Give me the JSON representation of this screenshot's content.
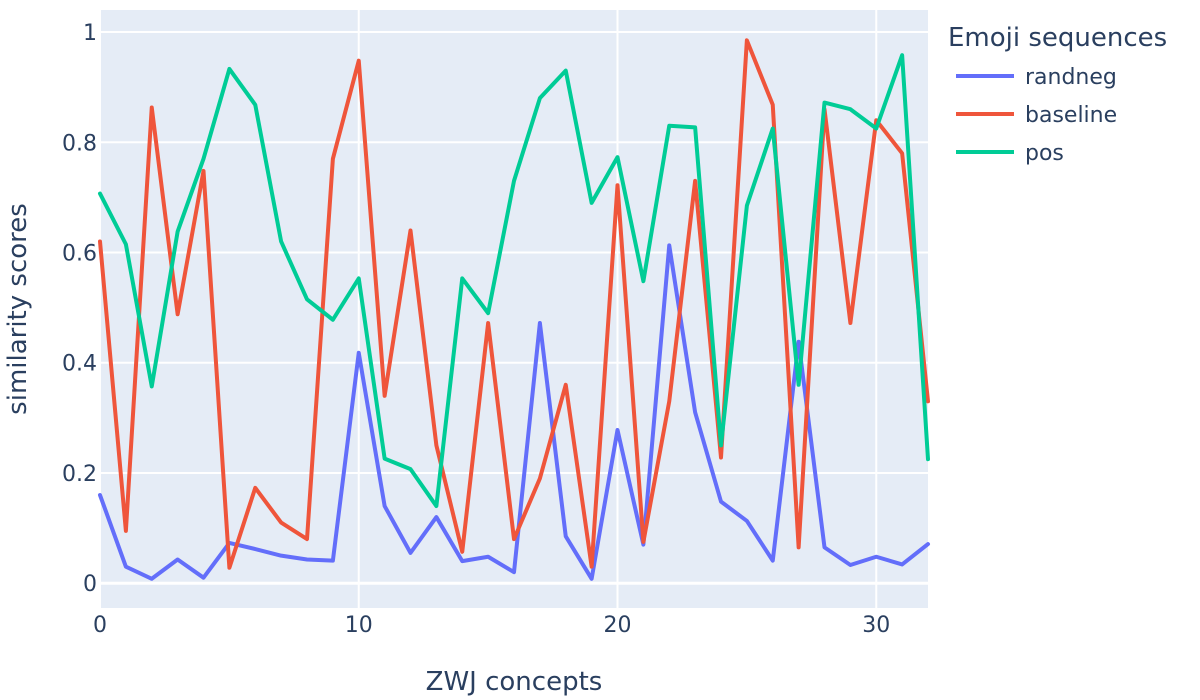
{
  "chart_data": {
    "type": "line",
    "xlabel": "ZWJ concepts",
    "ylabel": "similarity scores",
    "xlim": [
      0,
      32
    ],
    "ylim": [
      -0.045,
      1.04
    ],
    "x_ticks": [
      0,
      10,
      20,
      30
    ],
    "y_ticks": [
      0,
      0.2,
      0.4,
      0.6,
      0.8,
      1
    ],
    "x_tick_labels": [
      "0",
      "10",
      "20",
      "30"
    ],
    "y_tick_labels": [
      "0",
      "0.2",
      "0.4",
      "0.6",
      "0.8",
      "1"
    ],
    "grid": true,
    "legend": {
      "title": "Emoji sequences",
      "placement": "right"
    },
    "x": [
      0,
      1,
      2,
      3,
      4,
      5,
      6,
      7,
      8,
      9,
      10,
      11,
      12,
      13,
      14,
      15,
      16,
      17,
      18,
      19,
      20,
      21,
      22,
      23,
      24,
      25,
      26,
      27,
      28,
      29,
      30,
      31,
      32
    ],
    "series": [
      {
        "name": "randneg",
        "color": "#636efa",
        "values": [
          0.16,
          0.03,
          0.008,
          0.043,
          0.01,
          0.073,
          0.062,
          0.05,
          0.043,
          0.041,
          0.418,
          0.14,
          0.055,
          0.12,
          0.04,
          0.048,
          0.02,
          0.472,
          0.085,
          0.008,
          0.278,
          0.07,
          0.613,
          0.31,
          0.148,
          0.113,
          0.041,
          0.438,
          0.065,
          0.033,
          0.048,
          0.034,
          0.071
        ]
      },
      {
        "name": "baseline",
        "color": "#ef553b",
        "values": [
          0.62,
          0.095,
          0.863,
          0.488,
          0.748,
          0.028,
          0.173,
          0.11,
          0.08,
          0.77,
          0.948,
          0.34,
          0.64,
          0.25,
          0.057,
          0.472,
          0.08,
          0.19,
          0.36,
          0.03,
          0.722,
          0.075,
          0.33,
          0.73,
          0.228,
          0.985,
          0.868,
          0.065,
          0.86,
          0.472,
          0.84,
          0.78,
          0.33
        ]
      },
      {
        "name": "pos",
        "color": "#00cc96",
        "values": [
          0.707,
          0.615,
          0.357,
          0.638,
          0.77,
          0.933,
          0.868,
          0.62,
          0.515,
          0.478,
          0.553,
          0.226,
          0.207,
          0.14,
          0.553,
          0.49,
          0.73,
          0.88,
          0.93,
          0.69,
          0.773,
          0.548,
          0.83,
          0.827,
          0.25,
          0.685,
          0.825,
          0.36,
          0.872,
          0.86,
          0.825,
          0.958,
          0.225
        ]
      }
    ]
  }
}
